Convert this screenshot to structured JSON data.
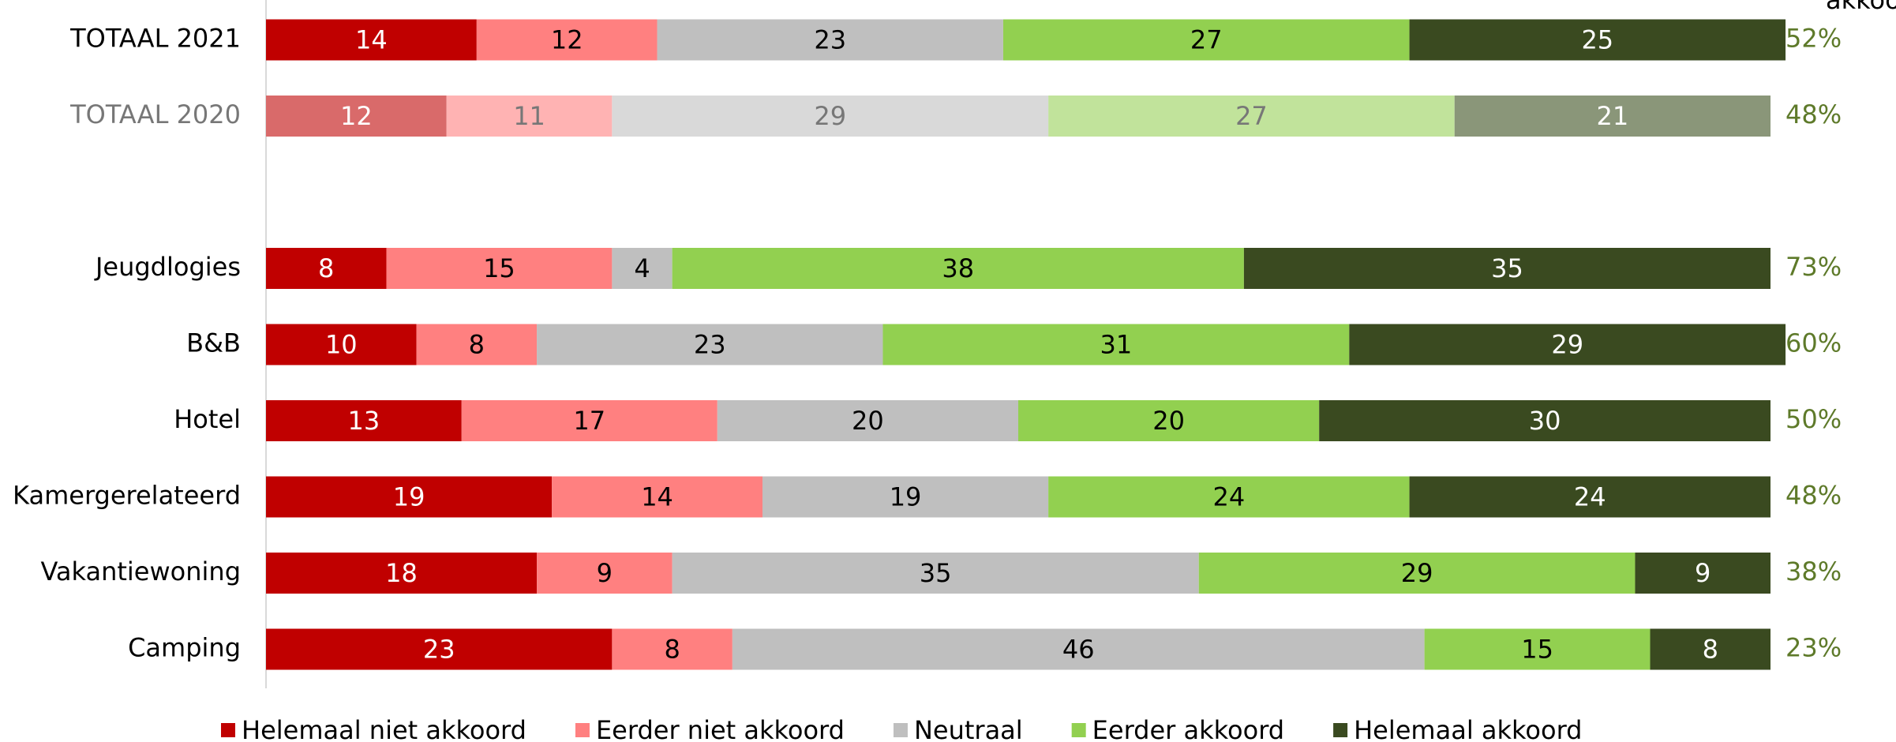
{
  "chart_data": {
    "type": "stacked-bar-horizontal",
    "header_label": "akkoord",
    "categories": [
      "TOTAAL 2021",
      "TOTAAL 2020",
      null,
      "Jeugdlogies",
      "B&B",
      "Hotel",
      "Kamergerelateerd",
      "Vakantiewoning",
      "Camping"
    ],
    "faded_rows": [
      1
    ],
    "xlim": [
      0,
      100
    ],
    "series": [
      {
        "name": "Helemaal niet akkoord",
        "color": "#c00000",
        "faded_color": "#d96a6a",
        "label_color": "#ffffff",
        "faded_label_color": "#ffffff",
        "values": [
          14,
          12,
          null,
          8,
          10,
          13,
          19,
          18,
          23
        ]
      },
      {
        "name": "Eerder niet akkoord",
        "color": "#ff8080",
        "faded_color": "#ffb3b3",
        "label_color": "#000000",
        "faded_label_color": "#777777",
        "values": [
          12,
          11,
          null,
          15,
          8,
          17,
          14,
          9,
          8
        ]
      },
      {
        "name": "Neutraal",
        "color": "#bfbfbf",
        "faded_color": "#d9d9d9",
        "label_color": "#000000",
        "faded_label_color": "#777777",
        "values": [
          23,
          29,
          null,
          4,
          23,
          20,
          19,
          35,
          46
        ]
      },
      {
        "name": "Eerder akkoord",
        "color": "#92d050",
        "faded_color": "#c1e39b",
        "label_color": "#000000",
        "faded_label_color": "#777777",
        "values": [
          27,
          27,
          null,
          38,
          31,
          20,
          24,
          29,
          15
        ]
      },
      {
        "name": "Helemaal akkoord",
        "color": "#3a4a20",
        "faded_color": "#8a9679",
        "label_color": "#ffffff",
        "faded_label_color": "#ffffff",
        "values": [
          25,
          21,
          null,
          35,
          29,
          30,
          24,
          9,
          8
        ]
      }
    ],
    "totals": {
      "color": "#5e7a2a",
      "values": [
        52,
        48,
        null,
        73,
        60,
        50,
        48,
        38,
        23
      ],
      "value_labels": [
        "52%",
        "48%",
        null,
        "73%",
        "60%",
        "50%",
        "48%",
        "38%",
        "23%"
      ]
    }
  }
}
